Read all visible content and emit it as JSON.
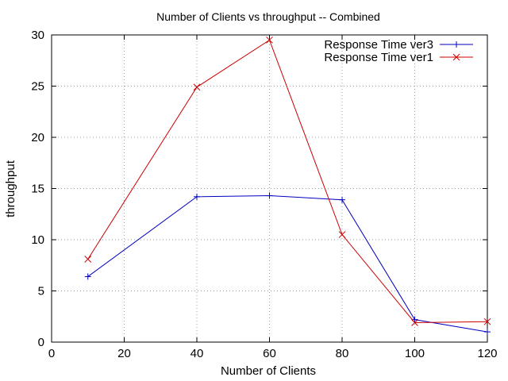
{
  "chart_data": {
    "type": "line",
    "title": "Number of Clients vs throughput -- Combined",
    "xlabel": "Number of Clients",
    "ylabel": "throughput",
    "xlim": [
      0,
      120
    ],
    "ylim": [
      0,
      30
    ],
    "xticks": [
      0,
      20,
      40,
      60,
      80,
      100,
      120
    ],
    "yticks": [
      0,
      5,
      10,
      15,
      20,
      25,
      30
    ],
    "grid": true,
    "legend_position": "top-right",
    "series": [
      {
        "name": "Response Time ver3",
        "color": "#0000c0",
        "marker": "plus",
        "x": [
          10,
          40,
          60,
          80,
          100,
          120
        ],
        "y": [
          6.4,
          14.2,
          14.3,
          13.9,
          2.2,
          1.0
        ]
      },
      {
        "name": "Response Time ver1",
        "color": "#cc0000",
        "marker": "cross",
        "x": [
          10,
          40,
          60,
          80,
          100,
          120
        ],
        "y": [
          8.1,
          24.9,
          29.5,
          10.5,
          1.9,
          2.0
        ]
      }
    ]
  }
}
